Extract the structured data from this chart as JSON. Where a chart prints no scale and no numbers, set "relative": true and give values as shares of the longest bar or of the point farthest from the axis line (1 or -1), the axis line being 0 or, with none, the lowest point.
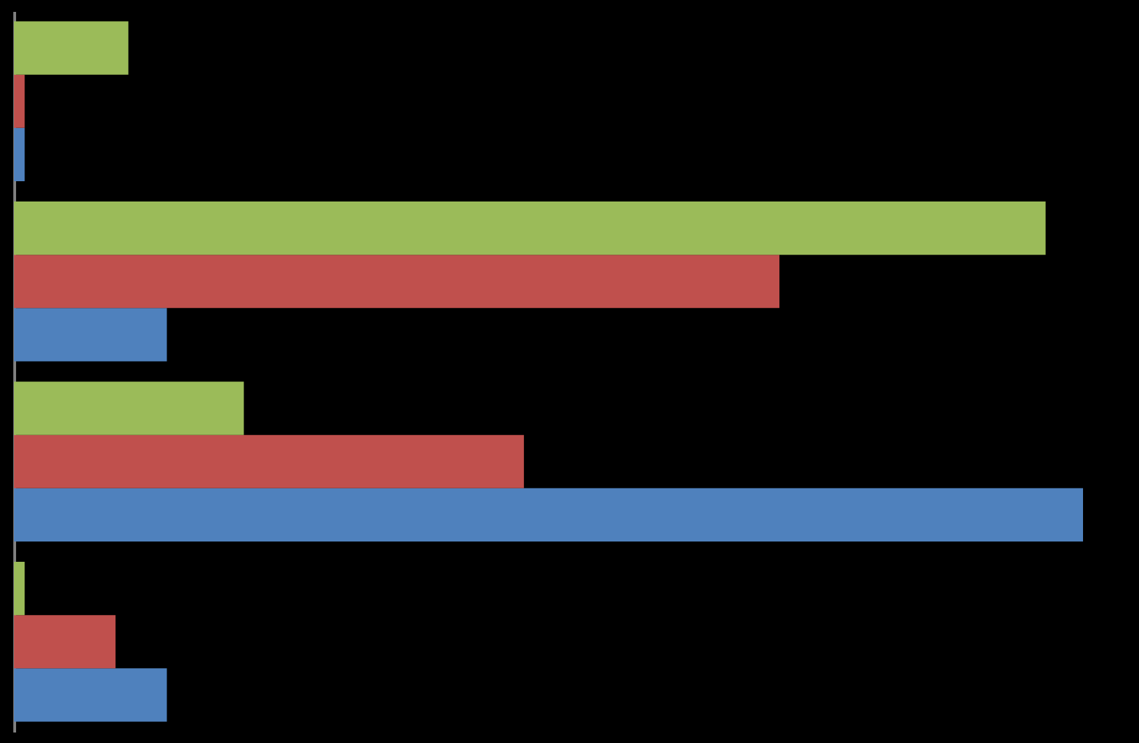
{
  "chart_data": {
    "type": "bar",
    "orientation": "horizontal",
    "relative": true,
    "categories": [
      null,
      null,
      null,
      null
    ],
    "series": [
      {
        "color": "#4f81bd",
        "values": [
          0.01,
          0.143,
          1,
          0.143
        ]
      },
      {
        "color": "#c0504d",
        "values": [
          0.01,
          0.716,
          0.477,
          0.095
        ]
      },
      {
        "color": "#9bbb59",
        "values": [
          0.107,
          0.965,
          0.215,
          0.01
        ]
      }
    ]
  }
}
